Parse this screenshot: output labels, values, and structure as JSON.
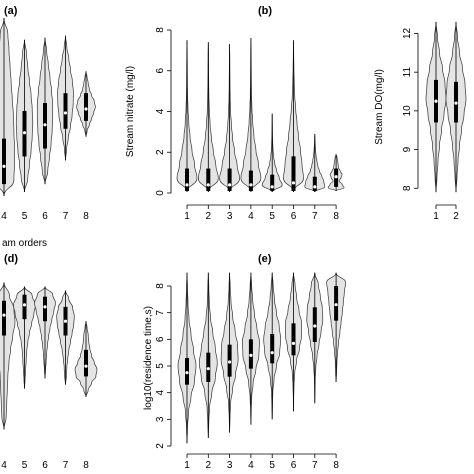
{
  "chart_data": [
    {
      "id": "a",
      "type": "violin",
      "title": "(a)",
      "ylabel": "",
      "xlabel": "am orders",
      "categories": [
        "4",
        "5",
        "6",
        "7",
        "8"
      ],
      "ylim": [
        0,
        9
      ],
      "yticks": [],
      "series": [
        {
          "min": 0,
          "q1": 0.6,
          "median": 1.5,
          "q3": 2.9,
          "max": 9.0,
          "shape": [
            0.9,
            0.95,
            0.95,
            0.9,
            0.85,
            0.75,
            0.65,
            0.55,
            0.45,
            0.35
          ]
        },
        {
          "min": 0.2,
          "q1": 2.0,
          "median": 3.2,
          "q3": 4.3,
          "max": 7.9,
          "shape": [
            0.3,
            0.45,
            0.6,
            0.7,
            0.75,
            0.7,
            0.6,
            0.45,
            0.3,
            0.18
          ]
        },
        {
          "min": 0.6,
          "q1": 2.4,
          "median": 3.6,
          "q3": 4.7,
          "max": 8.0,
          "shape": [
            0.25,
            0.4,
            0.55,
            0.65,
            0.7,
            0.7,
            0.6,
            0.45,
            0.3,
            0.15
          ]
        },
        {
          "min": 1.8,
          "q1": 3.4,
          "median": 4.2,
          "q3": 5.2,
          "max": 8.1,
          "shape": [
            0.1,
            0.25,
            0.45,
            0.6,
            0.7,
            0.72,
            0.62,
            0.45,
            0.3,
            0.12
          ]
        },
        {
          "min": 3.0,
          "q1": 3.8,
          "median": 4.4,
          "q3": 5.2,
          "max": 6.3,
          "shape": [
            0.1,
            0.3,
            0.5,
            0.7,
            0.85,
            0.75,
            0.5,
            0.3,
            0.2,
            0.1
          ]
        }
      ]
    },
    {
      "id": "b",
      "type": "violin",
      "title": "(b)",
      "ylabel": "Stream nitrate (mg/l)",
      "xlabel": "",
      "categories": [
        "1",
        "2",
        "3",
        "4",
        "5",
        "6",
        "7",
        "8"
      ],
      "ylim": [
        0,
        8
      ],
      "yticks": [
        "0",
        "2",
        "4",
        "6",
        "8"
      ],
      "series": [
        {
          "min": 0.05,
          "q1": 0.1,
          "median": 0.4,
          "q3": 1.2,
          "max": 7.5,
          "shape": [
            1.0,
            0.75,
            0.5,
            0.3,
            0.18,
            0.1,
            0.06,
            0.04,
            0.03,
            0.02
          ]
        },
        {
          "min": 0.05,
          "q1": 0.1,
          "median": 0.4,
          "q3": 1.2,
          "max": 7.4,
          "shape": [
            1.0,
            0.75,
            0.5,
            0.3,
            0.18,
            0.1,
            0.06,
            0.04,
            0.03,
            0.02
          ]
        },
        {
          "min": 0.05,
          "q1": 0.1,
          "median": 0.4,
          "q3": 1.2,
          "max": 7.3,
          "shape": [
            1.0,
            0.75,
            0.5,
            0.3,
            0.18,
            0.1,
            0.06,
            0.04,
            0.03,
            0.02
          ]
        },
        {
          "min": 0.05,
          "q1": 0.1,
          "median": 0.4,
          "q3": 1.1,
          "max": 7.6,
          "shape": [
            1.0,
            0.75,
            0.5,
            0.3,
            0.18,
            0.1,
            0.06,
            0.04,
            0.03,
            0.02
          ]
        },
        {
          "min": 0.05,
          "q1": 0.1,
          "median": 0.3,
          "q3": 0.9,
          "max": 3.9,
          "shape": [
            1.0,
            0.7,
            0.45,
            0.25,
            0.14,
            0.08,
            0.05,
            0.03,
            0.02,
            0.01
          ]
        },
        {
          "min": 0.05,
          "q1": 0.1,
          "median": 0.5,
          "q3": 1.8,
          "max": 7.5,
          "shape": [
            1.0,
            0.85,
            0.7,
            0.5,
            0.35,
            0.22,
            0.12,
            0.07,
            0.04,
            0.02
          ]
        },
        {
          "min": 0.05,
          "q1": 0.1,
          "median": 0.3,
          "q3": 0.8,
          "max": 2.9,
          "shape": [
            1.0,
            0.9,
            0.7,
            0.45,
            0.3,
            0.2,
            0.12,
            0.07,
            0.04,
            0.02
          ]
        },
        {
          "min": 0.1,
          "q1": 0.3,
          "median": 0.8,
          "q3": 1.2,
          "max": 1.9,
          "shape": [
            0.8,
            0.6,
            0.3,
            0.5,
            0.6,
            0.4,
            0.25,
            0.2,
            0.15,
            0.1
          ]
        }
      ]
    },
    {
      "id": "c",
      "type": "violin",
      "title": "",
      "ylabel": "Stream DO(mg/l)",
      "xlabel": "",
      "categories": [
        "1",
        "2"
      ],
      "ylim": [
        7.8,
        12.4
      ],
      "yticks": [
        "8",
        "9",
        "10",
        "11",
        "12"
      ],
      "series": [
        {
          "min": 7.9,
          "q1": 9.7,
          "median": 10.25,
          "q3": 10.8,
          "max": 12.3,
          "shape": [
            0.1,
            0.2,
            0.35,
            0.55,
            0.8,
            1.0,
            0.9,
            0.65,
            0.35,
            0.15
          ]
        },
        {
          "min": 7.9,
          "q1": 9.7,
          "median": 10.2,
          "q3": 10.75,
          "max": 12.3,
          "shape": [
            0.1,
            0.2,
            0.35,
            0.55,
            0.8,
            1.0,
            0.9,
            0.65,
            0.35,
            0.15
          ]
        }
      ]
    },
    {
      "id": "d",
      "type": "violin",
      "title": "(d)",
      "ylabel": "",
      "xlabel": "",
      "categories": [
        "4",
        "5",
        "6",
        "7",
        "8"
      ],
      "ylim": [
        0,
        9
      ],
      "yticks": [],
      "series": [
        {
          "min": 1.0,
          "q1": 5.6,
          "median": 6.6,
          "q3": 7.3,
          "max": 8.2,
          "shape": [
            0.2,
            0.25,
            0.3,
            0.35,
            0.45,
            0.6,
            0.8,
            1.0,
            0.9,
            0.5
          ]
        },
        {
          "min": 3.0,
          "q1": 6.4,
          "median": 7.1,
          "q3": 7.6,
          "max": 8.0,
          "shape": [
            0.05,
            0.1,
            0.15,
            0.2,
            0.3,
            0.45,
            0.65,
            0.85,
            1.0,
            0.7
          ]
        },
        {
          "min": 3.5,
          "q1": 6.3,
          "median": 7.0,
          "q3": 7.5,
          "max": 8.0,
          "shape": [
            0.05,
            0.1,
            0.15,
            0.22,
            0.32,
            0.45,
            0.62,
            0.8,
            0.95,
            0.7
          ]
        },
        {
          "min": 3.2,
          "q1": 5.6,
          "median": 6.3,
          "q3": 7.0,
          "max": 7.8,
          "shape": [
            0.08,
            0.12,
            0.2,
            0.3,
            0.45,
            0.6,
            0.75,
            0.8,
            0.65,
            0.3
          ]
        },
        {
          "min": 2.6,
          "q1": 3.6,
          "median": 4.1,
          "q3": 4.9,
          "max": 6.3,
          "shape": [
            0.2,
            0.5,
            0.9,
            1.0,
            0.75,
            0.5,
            0.35,
            0.25,
            0.2,
            0.1
          ]
        }
      ]
    },
    {
      "id": "e",
      "type": "violin",
      "title": "(e)",
      "ylabel": "log10(residence time,s)",
      "xlabel": "",
      "categories": [
        "1",
        "2",
        "3",
        "4",
        "5",
        "6",
        "7",
        "8"
      ],
      "ylim": [
        2,
        8.6
      ],
      "yticks": [
        "2",
        "3",
        "4",
        "5",
        "6",
        "7",
        "8"
      ],
      "series": [
        {
          "min": 2.1,
          "q1": 4.3,
          "median": 4.75,
          "q3": 5.3,
          "max": 8.5,
          "shape": [
            0.05,
            0.15,
            0.4,
            0.75,
            0.9,
            0.65,
            0.4,
            0.2,
            0.1,
            0.05
          ]
        },
        {
          "min": 2.3,
          "q1": 4.4,
          "median": 4.9,
          "q3": 5.5,
          "max": 8.5,
          "shape": [
            0.05,
            0.12,
            0.35,
            0.7,
            0.9,
            0.7,
            0.45,
            0.22,
            0.1,
            0.05
          ]
        },
        {
          "min": 2.5,
          "q1": 4.6,
          "median": 5.15,
          "q3": 5.8,
          "max": 8.5,
          "shape": [
            0.04,
            0.1,
            0.3,
            0.6,
            0.85,
            0.8,
            0.55,
            0.3,
            0.14,
            0.06
          ]
        },
        {
          "min": 2.8,
          "q1": 4.9,
          "median": 5.4,
          "q3": 6.0,
          "max": 8.5,
          "shape": [
            0.03,
            0.08,
            0.22,
            0.5,
            0.8,
            0.85,
            0.6,
            0.35,
            0.18,
            0.08
          ]
        },
        {
          "min": 3.0,
          "q1": 5.1,
          "median": 5.5,
          "q3": 6.2,
          "max": 8.5,
          "shape": [
            0.03,
            0.06,
            0.18,
            0.42,
            0.75,
            0.85,
            0.7,
            0.42,
            0.22,
            0.1
          ]
        },
        {
          "min": 3.3,
          "q1": 5.4,
          "median": 5.85,
          "q3": 6.6,
          "max": 8.5,
          "shape": [
            0.02,
            0.05,
            0.12,
            0.3,
            0.6,
            0.8,
            0.8,
            0.55,
            0.32,
            0.16
          ]
        },
        {
          "min": 3.6,
          "q1": 5.9,
          "median": 6.5,
          "q3": 7.2,
          "max": 8.5,
          "shape": [
            0.02,
            0.04,
            0.1,
            0.22,
            0.42,
            0.62,
            0.8,
            0.75,
            0.55,
            0.35
          ]
        },
        {
          "min": 4.4,
          "q1": 6.7,
          "median": 7.3,
          "q3": 8.0,
          "max": 8.5,
          "shape": [
            0.05,
            0.08,
            0.15,
            0.25,
            0.38,
            0.5,
            0.62,
            0.72,
            0.82,
            0.95
          ]
        }
      ]
    }
  ]
}
